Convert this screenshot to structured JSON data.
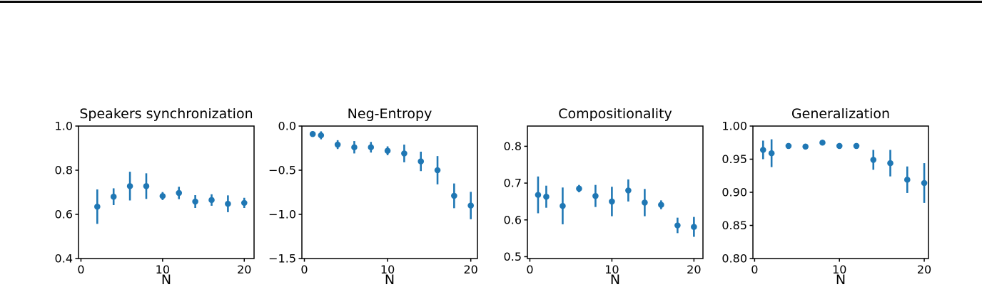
{
  "figure": {
    "background": "#ffffff",
    "top_rule_color": "#0a0a0a",
    "text_color": "#000000",
    "accent_color": "#1f77b4"
  },
  "chart_data": [
    {
      "type": "scatter",
      "title": "Speakers synchronization",
      "xlabel": "N",
      "ylabel": "",
      "color": "#1f77b4",
      "grid": false,
      "legend": null,
      "x": [
        2,
        4,
        6,
        8,
        10,
        12,
        14,
        16,
        18,
        20
      ],
      "y": [
        0.635,
        0.68,
        0.728,
        0.728,
        0.683,
        0.697,
        0.658,
        0.665,
        0.648,
        0.652
      ],
      "yerr": [
        0.078,
        0.038,
        0.065,
        0.058,
        0.018,
        0.028,
        0.029,
        0.026,
        0.038,
        0.023
      ],
      "xlim": [
        -0.3,
        21.2
      ],
      "ylim": [
        0.4,
        1.0
      ],
      "xticks": [
        0,
        10,
        20
      ],
      "xtick_labels": [
        "0",
        "10",
        "20"
      ],
      "yticks": [
        0.4,
        0.6,
        0.8,
        1.0
      ],
      "ytick_labels": [
        "0.4",
        "0.6",
        "0.8",
        "1.0"
      ]
    },
    {
      "type": "scatter",
      "title": "Neg-Entropy",
      "xlabel": "N",
      "ylabel": "",
      "color": "#1f77b4",
      "grid": false,
      "legend": null,
      "x": [
        1,
        2,
        4,
        6,
        8,
        10,
        12,
        14,
        16,
        18,
        20
      ],
      "y": [
        -0.09,
        -0.105,
        -0.21,
        -0.24,
        -0.24,
        -0.28,
        -0.31,
        -0.4,
        -0.5,
        -0.79,
        -0.9
      ],
      "yerr": [
        0.012,
        0.045,
        0.05,
        0.07,
        0.06,
        0.05,
        0.1,
        0.11,
        0.16,
        0.14,
        0.155
      ],
      "xlim": [
        -0.3,
        20.8
      ],
      "ylim": [
        -1.5,
        0.0
      ],
      "xticks": [
        0,
        10,
        20
      ],
      "xtick_labels": [
        "0",
        "10",
        "20"
      ],
      "yticks": [
        0.0,
        -0.5,
        -1.0,
        -1.5
      ],
      "ytick_labels": [
        "0.0",
        "−0.5",
        "−1.0",
        "−1.5"
      ]
    },
    {
      "type": "scatter",
      "title": "Compositionality",
      "xlabel": "N",
      "ylabel": "",
      "color": "#1f77b4",
      "grid": false,
      "legend": null,
      "x": [
        1,
        2,
        4,
        6,
        8,
        10,
        12,
        14,
        16,
        18,
        20
      ],
      "y": [
        0.668,
        0.663,
        0.638,
        0.685,
        0.665,
        0.65,
        0.68,
        0.647,
        0.641,
        0.585,
        0.581
      ],
      "yerr": [
        0.05,
        0.03,
        0.05,
        0.01,
        0.03,
        0.04,
        0.03,
        0.037,
        0.012,
        0.021,
        0.027
      ],
      "xlim": [
        -0.3,
        21.1
      ],
      "ylim": [
        0.495,
        0.855
      ],
      "xticks": [
        0,
        10,
        20
      ],
      "xtick_labels": [
        "0",
        "10",
        "20"
      ],
      "yticks": [
        0.5,
        0.6,
        0.7,
        0.8
      ],
      "ytick_labels": [
        "0.5",
        "0.6",
        "0.7",
        "0.8"
      ]
    },
    {
      "type": "scatter",
      "title": "Generalization",
      "xlabel": "N",
      "ylabel": "",
      "color": "#1f77b4",
      "grid": false,
      "legend": null,
      "x": [
        1,
        2,
        4,
        6,
        8,
        10,
        12,
        14,
        16,
        18,
        20
      ],
      "y": [
        0.964,
        0.959,
        0.97,
        0.969,
        0.975,
        0.97,
        0.97,
        0.949,
        0.944,
        0.919,
        0.914
      ],
      "yerr": [
        0.014,
        0.021,
        0.004,
        0.004,
        0.002,
        0.002,
        0.002,
        0.015,
        0.02,
        0.02,
        0.03
      ],
      "xlim": [
        -0.2,
        20.5
      ],
      "ylim": [
        0.8,
        1.0
      ],
      "xticks": [
        0,
        10,
        20
      ],
      "xtick_labels": [
        "0",
        "10",
        "20"
      ],
      "yticks": [
        0.8,
        0.85,
        0.9,
        0.95,
        1.0
      ],
      "ytick_labels": [
        "0.80",
        "0.85",
        "0.90",
        "0.95",
        "1.00"
      ]
    }
  ]
}
